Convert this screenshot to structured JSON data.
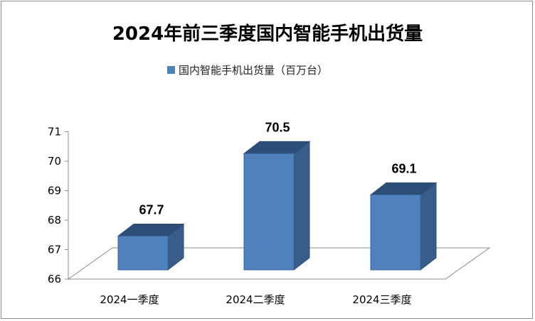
{
  "chart_data": {
    "type": "bar",
    "title": "2024年前三季度国内智能手机出货量",
    "categories": [
      "2024一季度",
      "2024二季度",
      "2024三季度"
    ],
    "series": [
      {
        "name": "国内智能手机出货量（百万台）",
        "values": [
          67.7,
          70.5,
          69.1
        ]
      }
    ],
    "data_labels": [
      "67.7",
      "70.5",
      "69.1"
    ],
    "y_ticks": [
      "66",
      "67",
      "68",
      "69",
      "70",
      "71"
    ],
    "ylim": [
      66,
      71
    ],
    "legend_position": "top",
    "grid": false,
    "bar_colors": {
      "front": "#4f81bd",
      "top": "#2c4d75",
      "side": "#385d8a"
    }
  }
}
